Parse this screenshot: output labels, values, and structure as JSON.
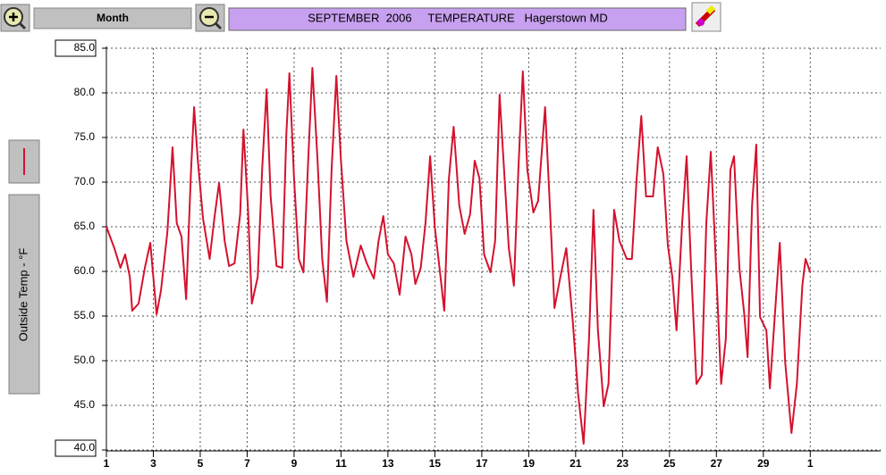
{
  "toolbar": {
    "period": "Month"
  },
  "chart_data": {
    "type": "line",
    "title": "SEPTEMBER  2006     TEMPERATURE   Hagerstown MD",
    "ylabel": "Outside Temp - °F",
    "grid": true,
    "xlim": [
      1,
      34
    ],
    "ylim": [
      40,
      85
    ],
    "xticks": [
      1,
      3,
      5,
      7,
      9,
      11,
      13,
      15,
      17,
      19,
      21,
      23,
      25,
      27,
      29,
      {
        "value": 31,
        "label": "1"
      }
    ],
    "yticks": [
      {
        "value": 40,
        "label": "40.0"
      },
      {
        "value": 45,
        "label": "45.0"
      },
      {
        "value": 50,
        "label": "50.0"
      },
      {
        "value": 55,
        "label": "55.0"
      },
      {
        "value": 60,
        "label": "60.0"
      },
      {
        "value": 65,
        "label": "65.0"
      },
      {
        "value": 70,
        "label": "70.0"
      },
      {
        "value": 75,
        "label": "75.0"
      },
      {
        "value": 80,
        "label": "80.0"
      },
      {
        "value": 85,
        "label": "85.0"
      }
    ],
    "x": [
      1.0,
      1.34,
      1.6,
      1.8,
      2.0,
      2.1,
      2.37,
      2.64,
      2.87,
      3.14,
      3.33,
      3.6,
      3.82,
      4.0,
      4.2,
      4.4,
      4.6,
      4.74,
      4.9,
      5.12,
      5.4,
      5.6,
      5.8,
      6.04,
      6.23,
      6.46,
      6.7,
      6.84,
      7.03,
      7.2,
      7.45,
      7.64,
      7.83,
      8.0,
      8.25,
      8.5,
      8.67,
      8.8,
      9.0,
      9.2,
      9.4,
      9.6,
      9.78,
      10.0,
      10.2,
      10.4,
      10.6,
      10.8,
      11.0,
      11.23,
      11.53,
      11.84,
      12.1,
      12.4,
      12.6,
      12.8,
      13.0,
      13.25,
      13.5,
      13.75,
      14.0,
      14.17,
      14.4,
      14.6,
      14.8,
      15.0,
      15.2,
      15.4,
      15.6,
      15.8,
      16.04,
      16.27,
      16.5,
      16.7,
      16.9,
      17.1,
      17.37,
      17.57,
      17.76,
      17.95,
      18.15,
      18.37,
      18.56,
      18.75,
      18.94,
      19.2,
      19.4,
      19.7,
      19.9,
      20.1,
      20.35,
      20.6,
      20.88,
      21.1,
      21.34,
      21.57,
      21.76,
      21.95,
      22.2,
      22.4,
      22.64,
      22.87,
      23.18,
      23.4,
      23.6,
      23.8,
      24.0,
      24.3,
      24.5,
      24.74,
      24.93,
      25.12,
      25.3,
      25.54,
      25.73,
      25.92,
      26.15,
      26.38,
      26.57,
      26.76,
      26.95,
      27.2,
      27.4,
      27.6,
      27.75,
      27.98,
      28.18,
      28.33,
      28.52,
      28.7,
      28.86,
      29.13,
      29.28,
      29.5,
      29.7,
      29.93,
      30.2,
      30.43,
      30.66,
      30.8,
      31.0
    ],
    "series": [
      {
        "color": "#d4122e",
        "values": [
          65.0,
          62.6,
          60.4,
          61.9,
          59.4,
          55.6,
          56.4,
          60.4,
          63.2,
          55.2,
          57.9,
          64.4,
          73.9,
          65.4,
          63.9,
          56.9,
          70.9,
          78.4,
          72.4,
          65.9,
          61.4,
          65.9,
          69.9,
          63.4,
          60.6,
          60.9,
          66.4,
          75.9,
          67.4,
          56.4,
          59.4,
          71.4,
          80.4,
          68.4,
          60.6,
          60.4,
          75.4,
          82.2,
          70.4,
          61.4,
          59.9,
          72.4,
          82.8,
          72.4,
          61.4,
          56.6,
          71.4,
          81.9,
          72.4,
          63.4,
          59.4,
          62.9,
          60.9,
          59.2,
          63.4,
          66.2,
          61.9,
          60.9,
          57.4,
          63.9,
          61.9,
          58.6,
          60.4,
          65.4,
          72.9,
          64.9,
          60.4,
          55.6,
          70.4,
          76.2,
          67.4,
          64.2,
          66.4,
          72.4,
          70.4,
          61.9,
          59.9,
          63.4,
          79.8,
          71.4,
          62.6,
          58.4,
          71.4,
          82.4,
          71.4,
          66.6,
          67.9,
          78.4,
          67.4,
          55.9,
          59.4,
          62.6,
          54.4,
          46.4,
          40.7,
          52.4,
          66.9,
          53.4,
          44.9,
          47.4,
          66.9,
          63.4,
          61.4,
          61.4,
          70.4,
          77.4,
          68.4,
          68.4,
          73.9,
          70.9,
          62.9,
          59.4,
          53.4,
          65.4,
          72.9,
          60.4,
          47.4,
          48.4,
          65.4,
          73.4,
          62.6,
          47.4,
          52.4,
          71.4,
          72.9,
          60.4,
          55.4,
          50.4,
          67.4,
          74.2,
          54.9,
          53.4,
          46.9,
          55.4,
          63.2,
          49.9,
          41.9,
          47.4,
          58.4,
          61.4,
          59.9
        ]
      }
    ]
  }
}
